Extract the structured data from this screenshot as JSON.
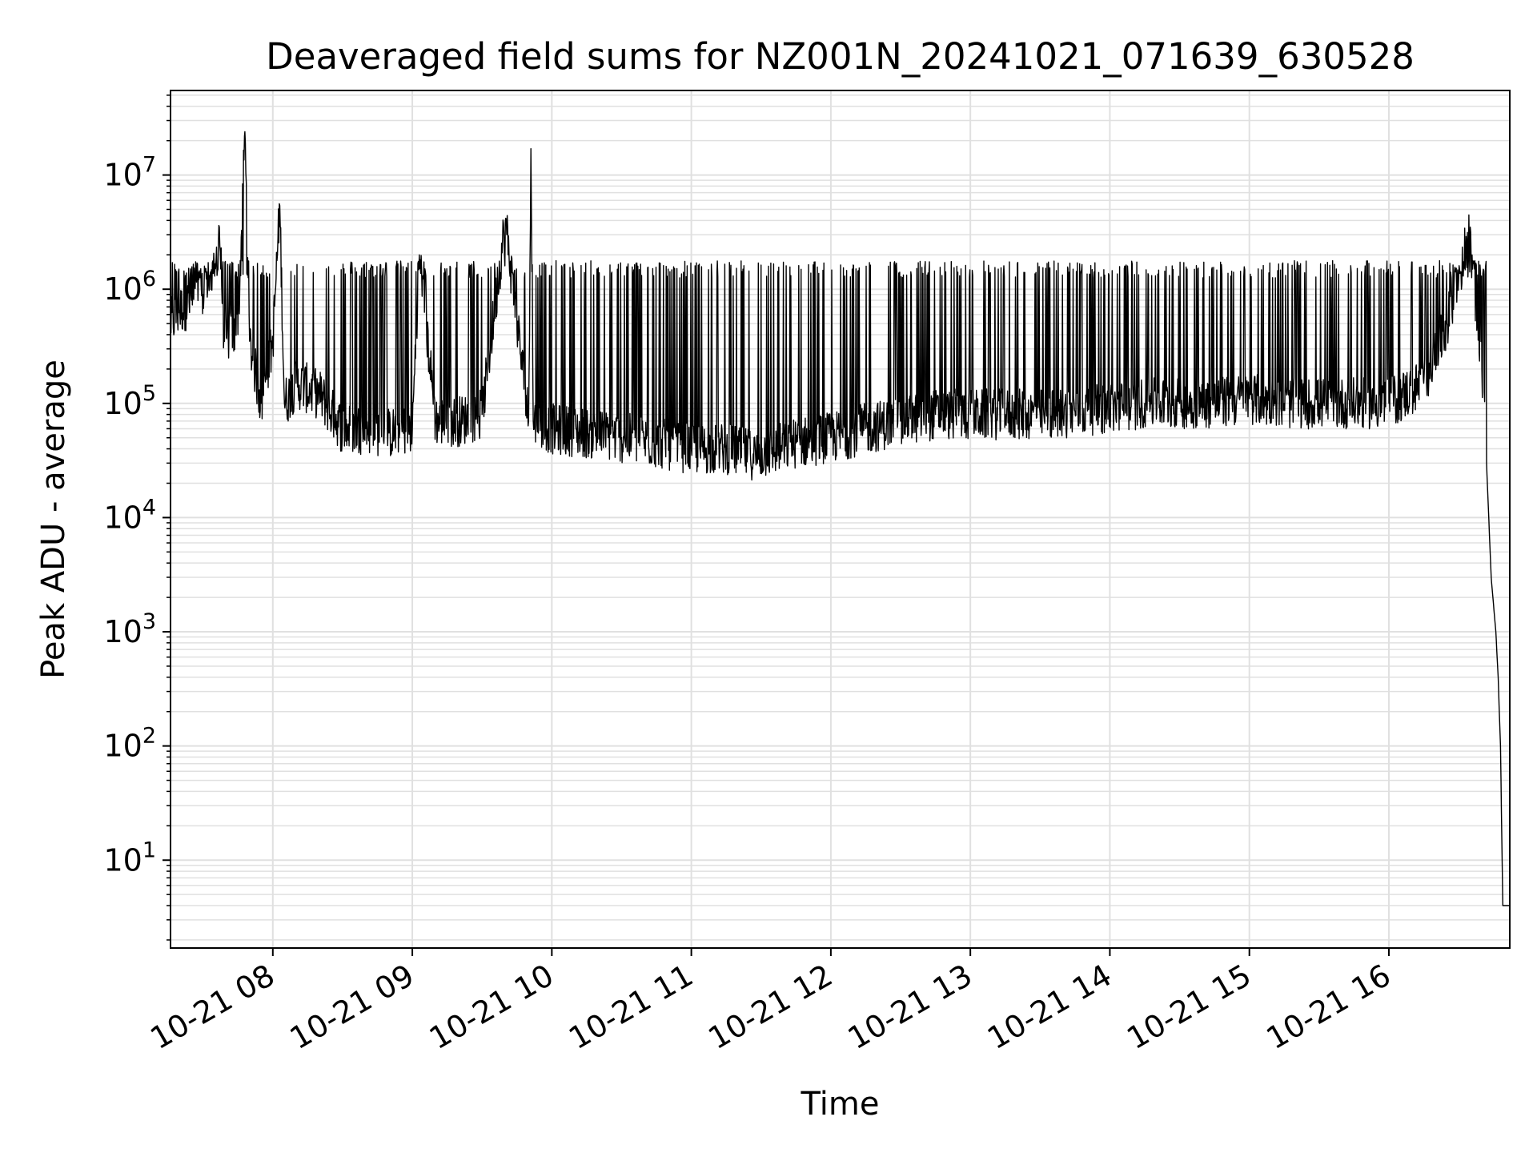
{
  "chart_data": {
    "type": "line",
    "title": "Deaveraged field sums for NZ001N_20241021_071639_630528",
    "xlabel": "Time",
    "ylabel": "Peak ADU - average",
    "x_tick_labels": [
      "10-21 08",
      "10-21 09",
      "10-21 10",
      "10-21 11",
      "10-21 12",
      "10-21 13",
      "10-21 14",
      "10-21 15",
      "10-21 16"
    ],
    "y_tick_labels": [
      {
        "base": "10",
        "exp": "1"
      },
      {
        "base": "10",
        "exp": "2"
      },
      {
        "base": "10",
        "exp": "3"
      },
      {
        "base": "10",
        "exp": "4"
      },
      {
        "base": "10",
        "exp": "5"
      },
      {
        "base": "10",
        "exp": "6"
      },
      {
        "base": "10",
        "exp": "7"
      }
    ],
    "xlim": [
      "2024-10-21 07:16",
      "2024-10-21 16:52"
    ],
    "ylim": [
      1.7,
      55000000
    ],
    "yscale": "log",
    "grid": true,
    "line_color": "#000000",
    "grid_color": "#e0e0e0",
    "series": [
      {
        "x": [
          "2024-10-21 07:16",
          "2024-10-21 07:20",
          "2024-10-21 07:25",
          "2024-10-21 07:30",
          "2024-10-21 07:35",
          "2024-10-21 07:37",
          "2024-10-21 07:39",
          "2024-10-21 07:40",
          "2024-10-21 07:45",
          "2024-10-21 07:48",
          "2024-10-21 07:50",
          "2024-10-21 07:55",
          "2024-10-21 08:00",
          "2024-10-21 08:03",
          "2024-10-21 08:05",
          "2024-10-21 08:10",
          "2024-10-21 08:20",
          "2024-10-21 08:30",
          "2024-10-21 08:40",
          "2024-10-21 08:50",
          "2024-10-21 09:00",
          "2024-10-21 09:03",
          "2024-10-21 09:10",
          "2024-10-21 09:20",
          "2024-10-21 09:30",
          "2024-10-21 09:40",
          "2024-10-21 09:50",
          "2024-10-21 09:51",
          "2024-10-21 09:52",
          "2024-10-21 10:00",
          "2024-10-21 10:15",
          "2024-10-21 10:30",
          "2024-10-21 10:45",
          "2024-10-21 11:00",
          "2024-10-21 11:15",
          "2024-10-21 11:28",
          "2024-10-21 11:45",
          "2024-10-21 12:00",
          "2024-10-21 12:15",
          "2024-10-21 12:30",
          "2024-10-21 12:45",
          "2024-10-21 13:00",
          "2024-10-21 13:15",
          "2024-10-21 13:30",
          "2024-10-21 13:45",
          "2024-10-21 14:00",
          "2024-10-21 14:15",
          "2024-10-21 14:30",
          "2024-10-21 14:45",
          "2024-10-21 15:00",
          "2024-10-21 15:15",
          "2024-10-21 15:30",
          "2024-10-21 15:45",
          "2024-10-21 16:00",
          "2024-10-21 16:15",
          "2024-10-21 16:25",
          "2024-10-21 16:30",
          "2024-10-21 16:35",
          "2024-10-21 16:38",
          "2024-10-21 16:40",
          "2024-10-21 16:42",
          "2024-10-21 16:44",
          "2024-10-21 16:46",
          "2024-10-21 16:47",
          "2024-10-21 16:48",
          "2024-10-21 16:49",
          "2024-10-21 16:50",
          "2024-10-21 16:51",
          "2024-10-21 16:52"
        ],
        "y": [
          500000,
          650000,
          800000,
          900000,
          1300000,
          3500000,
          400000,
          380000,
          400000,
          24000000,
          350000,
          100000,
          350000,
          5400000,
          100000,
          150000,
          120000,
          60000,
          60000,
          55000,
          60000,
          2000000,
          70000,
          70000,
          80000,
          4000000,
          70000,
          17000000,
          70000,
          60000,
          55000,
          50000,
          45000,
          40000,
          40000,
          35000,
          45000,
          50000,
          60000,
          70000,
          80000,
          80000,
          80000,
          80000,
          85000,
          90000,
          100000,
          100000,
          100000,
          110000,
          100000,
          100000,
          100000,
          100000,
          150000,
          500000,
          1200000,
          3500000,
          500000,
          200000,
          30000,
          3000,
          1000,
          400,
          100,
          4,
          4,
          4,
          4
        ]
      }
    ]
  }
}
